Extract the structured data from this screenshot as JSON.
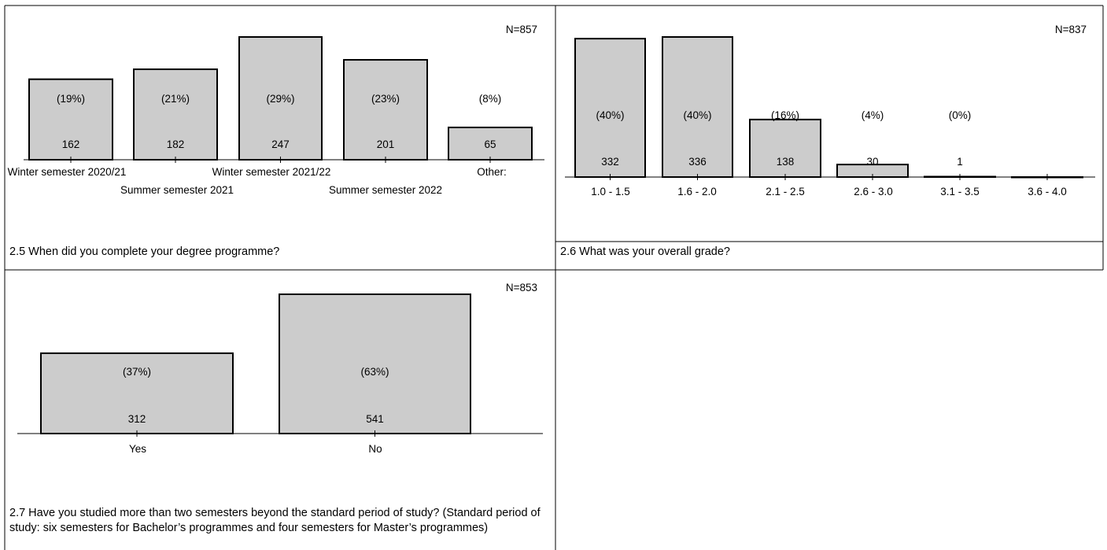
{
  "chart_data": [
    {
      "type": "bar",
      "title": "2.5 When did you complete your degree programme?",
      "n_label": "N=857",
      "categories": [
        "Winter semester 2020/21",
        "Summer semester 2021",
        "Winter semester 2021/22",
        "Summer semester 2022",
        "Other:"
      ],
      "values": [
        162,
        182,
        247,
        201,
        65
      ],
      "percent_labels": [
        "(19%)",
        "(21%)",
        "(29%)",
        "(23%)",
        "(8%)"
      ],
      "ylim": [
        0,
        247
      ],
      "bar_color": "#cccccc"
    },
    {
      "type": "bar",
      "title": "2.6 What was your overall grade?",
      "n_label": "N=837",
      "categories": [
        "1.0 - 1.5",
        "1.6 - 2.0",
        "2.1 - 2.5",
        "2.6 - 3.0",
        "3.1 - 3.5",
        "3.6 - 4.0"
      ],
      "values": [
        332,
        336,
        138,
        30,
        1,
        0
      ],
      "percent_labels": [
        "(40%)",
        "(40%)",
        "(16%)",
        "(4%)",
        "(0%)",
        ""
      ],
      "ylim": [
        0,
        336
      ],
      "bar_color": "#cccccc"
    },
    {
      "type": "bar",
      "title": "2.7 Have you studied more than two semesters beyond the standard period of study? (Standard period of study: six semesters for Bachelor’s programmes and four semesters for Master’s programmes)",
      "n_label": "N=853",
      "categories": [
        "Yes",
        "No"
      ],
      "values": [
        312,
        541
      ],
      "percent_labels": [
        "(37%)",
        "(63%)"
      ],
      "ylim": [
        0,
        541
      ],
      "bar_color": "#cccccc"
    }
  ]
}
